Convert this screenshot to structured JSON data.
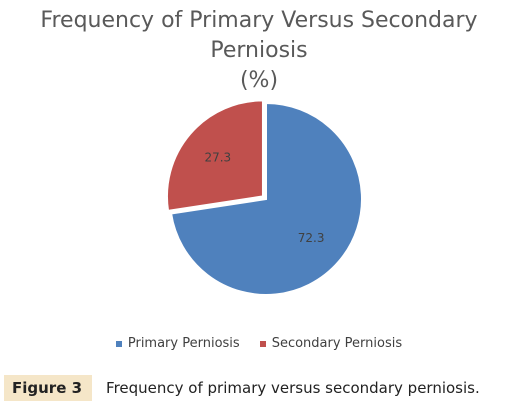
{
  "chart_data": {
    "type": "pie",
    "title_line1": "Frequency of Primary Versus Secondary Perniosis",
    "title_line2": "(%)",
    "slices": [
      {
        "name": "Primary Perniosis",
        "value": 72.3,
        "label": "72.3",
        "color": "#4f81bd"
      },
      {
        "name": "Secondary Perniosis",
        "value": 27.3,
        "label": "27.3",
        "color": "#c0504d"
      }
    ],
    "legend_position": "bottom"
  },
  "caption": {
    "label": "Figure 3",
    "text": "Frequency of primary versus secondary perniosis."
  }
}
